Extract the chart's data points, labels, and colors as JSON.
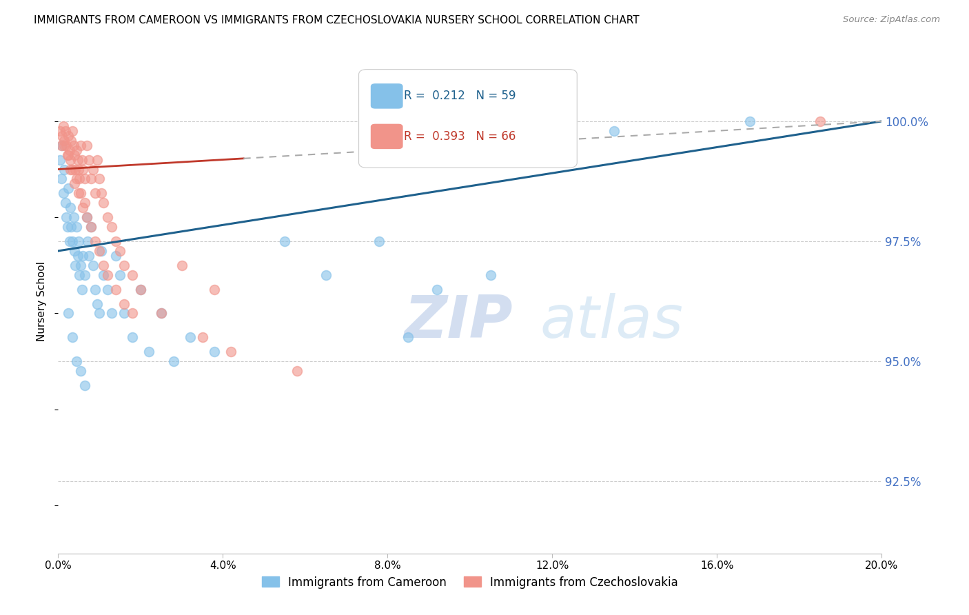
{
  "title": "IMMIGRANTS FROM CAMEROON VS IMMIGRANTS FROM CZECHOSLOVAKIA NURSERY SCHOOL CORRELATION CHART",
  "source": "Source: ZipAtlas.com",
  "ylabel": "Nursery School",
  "ytick_values": [
    100.0,
    97.5,
    95.0,
    92.5
  ],
  "xlim": [
    0.0,
    20.0
  ],
  "ylim": [
    91.0,
    101.5
  ],
  "legend_blue_R": "0.212",
  "legend_blue_N": "59",
  "legend_pink_R": "0.393",
  "legend_pink_N": "66",
  "blue_color": "#85c1e9",
  "pink_color": "#f1948a",
  "trend_blue": "#1f618d",
  "trend_pink": "#c0392b",
  "watermark_zip": "ZIP",
  "watermark_atlas": "atlas",
  "cameroon_x": [
    0.05,
    0.08,
    0.1,
    0.12,
    0.15,
    0.18,
    0.2,
    0.22,
    0.25,
    0.28,
    0.3,
    0.32,
    0.35,
    0.38,
    0.4,
    0.42,
    0.45,
    0.48,
    0.5,
    0.52,
    0.55,
    0.58,
    0.6,
    0.65,
    0.7,
    0.72,
    0.75,
    0.8,
    0.85,
    0.9,
    0.95,
    1.0,
    1.05,
    1.1,
    1.2,
    1.3,
    1.4,
    1.5,
    1.6,
    1.8,
    2.0,
    2.2,
    2.5,
    2.8,
    3.2,
    3.8,
    5.5,
    6.5,
    7.8,
    8.5,
    9.2,
    10.5,
    13.5,
    16.8,
    0.25,
    0.35,
    0.45,
    0.55,
    0.65
  ],
  "cameroon_y": [
    99.2,
    98.8,
    99.5,
    98.5,
    99.0,
    98.3,
    98.0,
    97.8,
    98.6,
    97.5,
    98.2,
    97.8,
    97.5,
    98.0,
    97.3,
    97.0,
    97.8,
    97.2,
    97.5,
    96.8,
    97.0,
    96.5,
    97.2,
    96.8,
    98.0,
    97.5,
    97.2,
    97.8,
    97.0,
    96.5,
    96.2,
    96.0,
    97.3,
    96.8,
    96.5,
    96.0,
    97.2,
    96.8,
    96.0,
    95.5,
    96.5,
    95.2,
    96.0,
    95.0,
    95.5,
    95.2,
    97.5,
    96.8,
    97.5,
    95.5,
    96.5,
    96.8,
    99.8,
    100.0,
    96.0,
    95.5,
    95.0,
    94.8,
    94.5
  ],
  "czechoslovakia_x": [
    0.05,
    0.08,
    0.1,
    0.12,
    0.15,
    0.18,
    0.2,
    0.22,
    0.25,
    0.28,
    0.3,
    0.32,
    0.35,
    0.38,
    0.4,
    0.42,
    0.45,
    0.48,
    0.5,
    0.52,
    0.55,
    0.58,
    0.6,
    0.65,
    0.7,
    0.75,
    0.8,
    0.85,
    0.9,
    0.95,
    1.0,
    1.05,
    1.1,
    1.2,
    1.3,
    1.4,
    1.5,
    1.6,
    1.8,
    2.0,
    2.5,
    3.0,
    3.5,
    3.8,
    4.2,
    5.8,
    18.5,
    0.15,
    0.25,
    0.35,
    0.45,
    0.55,
    0.65,
    0.3,
    0.4,
    0.5,
    0.6,
    0.7,
    0.8,
    0.9,
    1.0,
    1.1,
    1.2,
    1.4,
    1.6,
    1.8
  ],
  "czechoslovakia_y": [
    99.8,
    99.5,
    99.7,
    99.9,
    99.6,
    99.8,
    99.5,
    99.3,
    99.7,
    99.4,
    99.2,
    99.6,
    99.8,
    99.5,
    99.3,
    99.0,
    99.4,
    99.2,
    99.0,
    98.8,
    99.5,
    99.2,
    99.0,
    98.8,
    99.5,
    99.2,
    98.8,
    99.0,
    98.5,
    99.2,
    98.8,
    98.5,
    98.3,
    98.0,
    97.8,
    97.5,
    97.3,
    97.0,
    96.8,
    96.5,
    96.0,
    97.0,
    95.5,
    96.5,
    95.2,
    94.8,
    100.0,
    99.5,
    99.3,
    99.0,
    98.8,
    98.5,
    98.3,
    99.0,
    98.7,
    98.5,
    98.2,
    98.0,
    97.8,
    97.5,
    97.3,
    97.0,
    96.8,
    96.5,
    96.2,
    96.0
  ]
}
